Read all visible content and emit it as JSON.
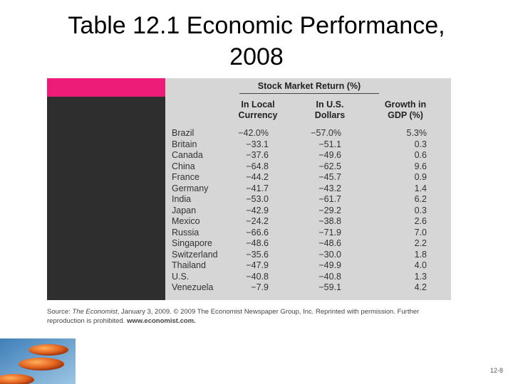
{
  "slide": {
    "title_line1": "Table 12.1 Economic Performance,",
    "title_line2": "2008",
    "slide_number": "12-8"
  },
  "colors": {
    "pink_bar": "#ee1c79",
    "left_panel": "#2e2e2e",
    "table_bg": "#d6d6d6"
  },
  "table": {
    "group_header": "Stock Market Return (%)",
    "columns": [
      {
        "line1": "In Local",
        "line2": "Currency"
      },
      {
        "line1": "In U.S.",
        "line2": "Dollars"
      },
      {
        "line1": "Growth in",
        "line2": "GDP (%)"
      }
    ],
    "rows": [
      {
        "country": "Brazil",
        "local": "−42.0%",
        "usd": "−57.0%",
        "gdp": "5.3%"
      },
      {
        "country": "Britain",
        "local": "−33.1",
        "usd": "−51.1",
        "gdp": "0.3"
      },
      {
        "country": "Canada",
        "local": "−37.6",
        "usd": "−49.6",
        "gdp": "0.6"
      },
      {
        "country": "China",
        "local": "−64.8",
        "usd": "−62.5",
        "gdp": "9.6"
      },
      {
        "country": "France",
        "local": "−44.2",
        "usd": "−45.7",
        "gdp": "0.9"
      },
      {
        "country": "Germany",
        "local": "−41.7",
        "usd": "−43.2",
        "gdp": "1.4"
      },
      {
        "country": "India",
        "local": "−53.0",
        "usd": "−61.7",
        "gdp": "6.2"
      },
      {
        "country": "Japan",
        "local": "−42.9",
        "usd": "−29.2",
        "gdp": "0.3"
      },
      {
        "country": "Mexico",
        "local": "−24.2",
        "usd": "−38.8",
        "gdp": "2.6"
      },
      {
        "country": "Russia",
        "local": "−66.6",
        "usd": "−71.9",
        "gdp": "7.0"
      },
      {
        "country": "Singapore",
        "local": "−48.6",
        "usd": "−48.6",
        "gdp": "2.2"
      },
      {
        "country": "Switzerland",
        "local": "−35.6",
        "usd": "−30.0",
        "gdp": "1.8"
      },
      {
        "country": "Thailand",
        "local": "−47.9",
        "usd": "−49.9",
        "gdp": "4.0"
      },
      {
        "country": "U.S.",
        "local": "−40.8",
        "usd": "−40.8",
        "gdp": "1.3"
      },
      {
        "country": "Venezuela",
        "local": "−7.9",
        "usd": "−59.1",
        "gdp": "4.2"
      }
    ]
  },
  "source": {
    "label": "Source:",
    "publication": "The Economist",
    "text": ", January 3, 2009. © 2009 The Economist Newspaper Group, Inc. Reprinted with permission. Further reproduction is prohibited.",
    "url": "www.economist.com."
  }
}
